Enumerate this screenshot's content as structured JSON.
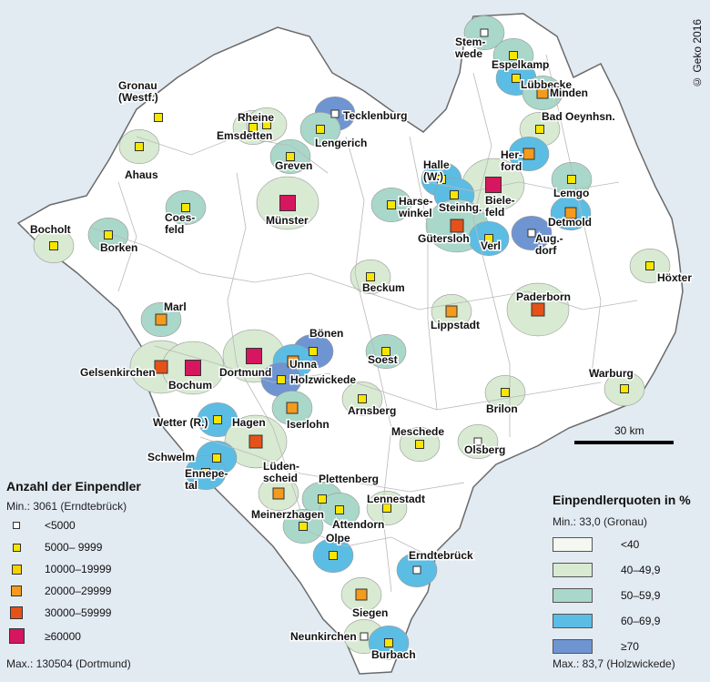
{
  "copyright": "© Geko 2016",
  "scale_label": "30 km",
  "legend_counts": {
    "title": "Anzahl der Einpendler",
    "min": "Min.: 3061 (Erndtebrück)",
    "max": "Max.: 130504 (Dortmund)",
    "classes": [
      {
        "label": "<5000",
        "color": "#ffffff",
        "size": 8
      },
      {
        "label": "5000– 9999",
        "color": "#f7e600",
        "size": 9
      },
      {
        "label": "10000–19999",
        "color": "#f7d000",
        "size": 11
      },
      {
        "label": "20000–29999",
        "color": "#f49a1c",
        "size": 12
      },
      {
        "label": "30000–59999",
        "color": "#e4521a",
        "size": 14
      },
      {
        "label": "≥60000",
        "color": "#d6165f",
        "size": 17
      }
    ]
  },
  "legend_quota": {
    "title": "Einpendlerquoten in %",
    "min": "Min.: 33,0 (Gronau)",
    "max": "Max.: 83,7 (Holzwickede)",
    "classes": [
      {
        "label": "<40",
        "color": "#f5f8f0"
      },
      {
        "label": "40–49,9",
        "color": "#d8ead2"
      },
      {
        "label": "50–59,9",
        "color": "#a9d7c9"
      },
      {
        "label": "60–69,9",
        "color": "#5cbde4"
      },
      {
        "label": "≥70",
        "color": "#6f94d2"
      }
    ]
  },
  "places": [
    {
      "name": "Stemwede",
      "label": [
        "Stem-",
        "wede"
      ],
      "cls": 0,
      "quota": 2
    },
    {
      "name": "Espelkamp",
      "label": [
        "Espelkamp"
      ],
      "cls": 1,
      "quota": 2
    },
    {
      "name": "Lübbecke",
      "label": [
        "Lübbecke"
      ],
      "cls": 1,
      "quota": 3
    },
    {
      "name": "Minden",
      "label": [
        "Minden"
      ],
      "cls": 3,
      "quota": 2
    },
    {
      "name": "Bad Oeynhsn.",
      "label": [
        "Bad Oeynhsn."
      ],
      "cls": 1,
      "quota": 1
    },
    {
      "name": "Gronau (Westf.)",
      "label": [
        "Gronau",
        "(Westf.)"
      ],
      "cls": 1,
      "quota": 0
    },
    {
      "name": "Rheine",
      "label": [
        "Rheine"
      ],
      "cls": 1,
      "quota": 1
    },
    {
      "name": "Emsdetten",
      "label": [
        "Emsdetten"
      ],
      "cls": 1,
      "quota": 1
    },
    {
      "name": "Tecklenburg",
      "label": [
        "Tecklenburg"
      ],
      "cls": 0,
      "quota": 4
    },
    {
      "name": "Lengerich",
      "label": [
        "Lengerich"
      ],
      "cls": 1,
      "quota": 2
    },
    {
      "name": "Ahaus",
      "label": [
        "Ahaus"
      ],
      "cls": 1,
      "quota": 1
    },
    {
      "name": "Greven",
      "label": [
        "Greven"
      ],
      "cls": 1,
      "quota": 2
    },
    {
      "name": "Herford",
      "label": [
        "Her-",
        "ford"
      ],
      "cls": 3,
      "quota": 3
    },
    {
      "name": "Halle (W.)",
      "label": [
        "Halle",
        "(W.)"
      ],
      "cls": 1,
      "quota": 3
    },
    {
      "name": "Bielefeld",
      "label": [
        "Biele-",
        "feld"
      ],
      "cls": 5,
      "quota": 1
    },
    {
      "name": "Lemgo",
      "label": [
        "Lemgo"
      ],
      "cls": 1,
      "quota": 2
    },
    {
      "name": "Harsewinkel",
      "label": [
        "Harse-",
        "winkel"
      ],
      "cls": 1,
      "quota": 2
    },
    {
      "name": "Steinhagen",
      "label": [
        "Steinhg."
      ],
      "cls": 1,
      "quota": 3
    },
    {
      "name": "Detmold",
      "label": [
        "Detmold"
      ],
      "cls": 3,
      "quota": 3
    },
    {
      "name": "Coesfeld",
      "label": [
        "Coes-",
        "feld"
      ],
      "cls": 1,
      "quota": 2
    },
    {
      "name": "Münster",
      "label": [
        "Münster"
      ],
      "cls": 5,
      "quota": 1
    },
    {
      "name": "Gütersloh",
      "label": [
        "Gütersloh"
      ],
      "cls": 4,
      "quota": 2
    },
    {
      "name": "Verl",
      "label": [
        "Verl"
      ],
      "cls": 1,
      "quota": 3
    },
    {
      "name": "Augustdorf",
      "label": [
        "Aug.-",
        "dorf"
      ],
      "cls": 0,
      "quota": 4
    },
    {
      "name": "Bocholt",
      "label": [
        "Bocholt"
      ],
      "cls": 1,
      "quota": 1
    },
    {
      "name": "Borken",
      "label": [
        "Borken"
      ],
      "cls": 1,
      "quota": 2
    },
    {
      "name": "Höxter",
      "label": [
        "Höxter"
      ],
      "cls": 1,
      "quota": 1
    },
    {
      "name": "Beckum",
      "label": [
        "Beckum"
      ],
      "cls": 1,
      "quota": 1
    },
    {
      "name": "Paderborn",
      "label": [
        "Paderborn"
      ],
      "cls": 4,
      "quota": 1
    },
    {
      "name": "Marl",
      "label": [
        "Marl"
      ],
      "cls": 3,
      "quota": 2
    },
    {
      "name": "Lippstadt",
      "label": [
        "Lippstadt"
      ],
      "cls": 3,
      "quota": 1
    },
    {
      "name": "Bönen",
      "label": [
        "Bönen"
      ],
      "cls": 1,
      "quota": 4
    },
    {
      "name": "Gelsenkirchen",
      "label": [
        "Gelsenkirchen"
      ],
      "cls": 4,
      "quota": 1
    },
    {
      "name": "Bochum",
      "label": [
        "Bochum"
      ],
      "cls": 5,
      "quota": 1
    },
    {
      "name": "Dortmund",
      "label": [
        "Dortmund"
      ],
      "cls": 5,
      "quota": 1
    },
    {
      "name": "Unna",
      "label": [
        "Unna"
      ],
      "cls": 3,
      "quota": 3
    },
    {
      "name": "Soest",
      "label": [
        "Soest"
      ],
      "cls": 1,
      "quota": 2
    },
    {
      "name": "Holzwickede",
      "label": [
        "Holzwickede"
      ],
      "cls": 1,
      "quota": 4
    },
    {
      "name": "Warburg",
      "label": [
        "Warburg"
      ],
      "cls": 1,
      "quota": 1
    },
    {
      "name": "Arnsberg",
      "label": [
        "Arnsberg"
      ],
      "cls": 1,
      "quota": 1
    },
    {
      "name": "Iserlohn",
      "label": [
        "Iserlohn"
      ],
      "cls": 3,
      "quota": 2
    },
    {
      "name": "Brilon",
      "label": [
        "Brilon"
      ],
      "cls": 1,
      "quota": 1
    },
    {
      "name": "Wetter (R.)",
      "label": [
        "Wetter (R.)"
      ],
      "cls": 1,
      "quota": 3
    },
    {
      "name": "Hagen",
      "label": [
        "Hagen"
      ],
      "cls": 4,
      "quota": 1
    },
    {
      "name": "Meschede",
      "label": [
        "Meschede"
      ],
      "cls": 1,
      "quota": 1
    },
    {
      "name": "Olsberg",
      "label": [
        "Olsberg"
      ],
      "cls": 0,
      "quota": 1
    },
    {
      "name": "Schwelm",
      "label": [
        "Schwelm"
      ],
      "cls": 1,
      "quota": 3
    },
    {
      "name": "Ennepetal",
      "label": [
        "Ennepe-",
        "tal"
      ],
      "cls": 1,
      "quota": 3
    },
    {
      "name": "Lüdenscheid",
      "label": [
        "Lüden-",
        "scheid"
      ],
      "cls": 3,
      "quota": 1
    },
    {
      "name": "Plettenberg",
      "label": [
        "Plettenberg"
      ],
      "cls": 1,
      "quota": 2
    },
    {
      "name": "Lennestadt",
      "label": [
        "Lennestadt"
      ],
      "cls": 1,
      "quota": 1
    },
    {
      "name": "Meinerzhagen",
      "label": [
        "Meinerzhagen"
      ],
      "cls": 1,
      "quota": 2
    },
    {
      "name": "Attendorn",
      "label": [
        "Attendorn"
      ],
      "cls": 1,
      "quota": 2
    },
    {
      "name": "Olpe",
      "label": [
        "Olpe"
      ],
      "cls": 1,
      "quota": 3
    },
    {
      "name": "Erndtebrück",
      "label": [
        "Erndtebrück"
      ],
      "cls": 0,
      "quota": 3
    },
    {
      "name": "Siegen",
      "label": [
        "Siegen"
      ],
      "cls": 3,
      "quota": 1
    },
    {
      "name": "Neunkirchen",
      "label": [
        "Neunkirchen"
      ],
      "cls": 0,
      "quota": 1
    },
    {
      "name": "Burbach",
      "label": [
        "Burbach"
      ],
      "cls": 1,
      "quota": 3
    }
  ]
}
